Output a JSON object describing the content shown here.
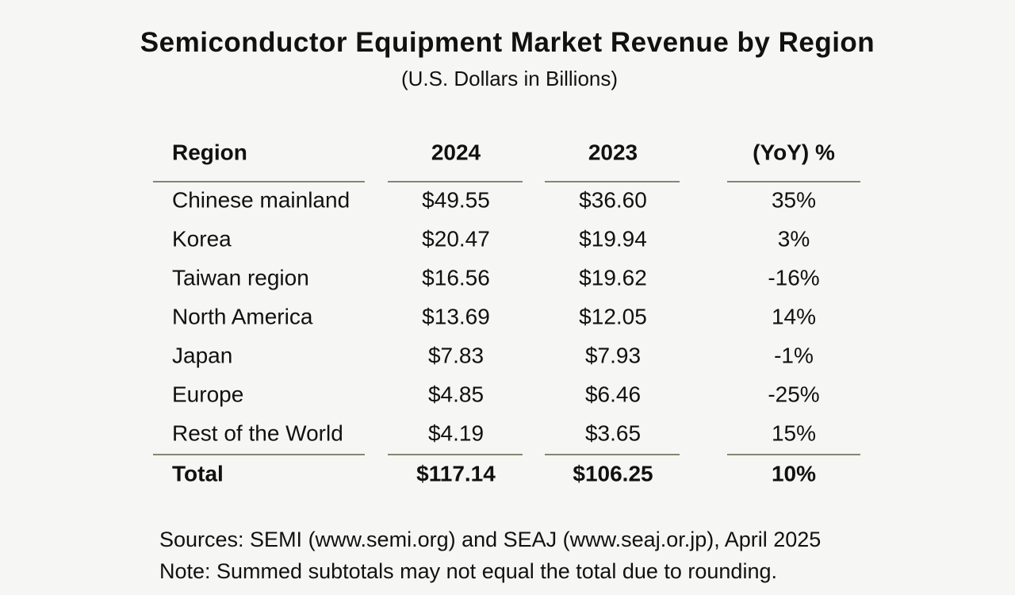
{
  "title": "Semiconductor Equipment Market Revenue by Region",
  "subtitle": "(U.S. Dollars in Billions)",
  "chart_data": {
    "type": "table",
    "title": "Semiconductor Equipment Market Revenue by Region",
    "subtitle": "(U.S. Dollars in Billions)",
    "columns": [
      "Region",
      "2024",
      "2023",
      "(YoY) %"
    ],
    "rows": [
      [
        "Chinese mainland",
        "$49.55",
        "$36.60",
        "35%"
      ],
      [
        "Korea",
        "$20.47",
        "$19.94",
        "3%"
      ],
      [
        "Taiwan region",
        "$16.56",
        "$19.62",
        "-16%"
      ],
      [
        "North America",
        "$13.69",
        "$12.05",
        "14%"
      ],
      [
        "Japan",
        "$7.83",
        "$7.93",
        "-1%"
      ],
      [
        "Europe",
        "$4.85",
        "$6.46",
        "-25%"
      ],
      [
        "Rest of the World",
        "$4.19",
        "$3.65",
        "15%"
      ]
    ],
    "total": [
      "Total",
      "$117.14",
      "$106.25",
      "10%"
    ]
  },
  "footnotes": {
    "sources": "Sources: SEMI (www.semi.org) and SEAJ (www.seaj.or.jp), April 2025",
    "note": "Note: Summed subtotals may not equal the total due to rounding."
  },
  "colors": {
    "rule": "#5d6247",
    "text": "#111111",
    "background": "#f6f6f4"
  }
}
